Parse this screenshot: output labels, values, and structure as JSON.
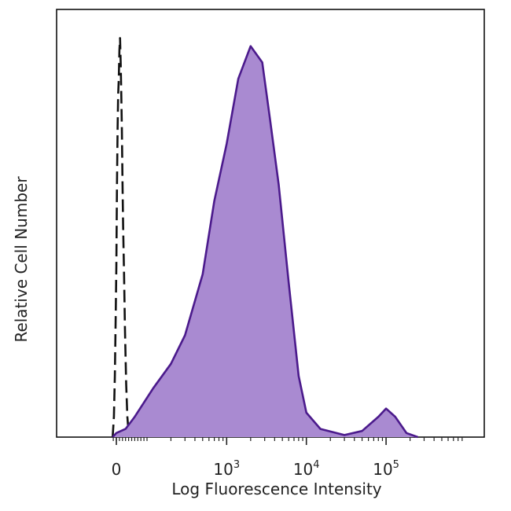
{
  "chart_data": {
    "type": "area",
    "xlabel": "Log Fluorescence Intensity",
    "ylabel": "Relative Cell Number",
    "x_scale": "biexponential",
    "xlim": [
      -20,
      400000
    ],
    "ylim": [
      0,
      100
    ],
    "x_ticks": [
      {
        "value": 0,
        "base": "0",
        "exp": ""
      },
      {
        "value": 1000,
        "base": "10",
        "exp": "3"
      },
      {
        "value": 10000,
        "base": "10",
        "exp": "4"
      },
      {
        "value": 100000,
        "base": "10",
        "exp": "5"
      }
    ],
    "series": [
      {
        "style": "dashed-outline",
        "color": "#111111",
        "x": [
          -12,
          -8,
          -5,
          -2,
          0,
          2,
          4,
          6,
          8,
          10,
          12,
          14,
          16,
          18,
          20,
          22,
          25,
          28,
          32,
          36,
          40,
          46
        ],
        "y": [
          0,
          5,
          15,
          30,
          42,
          62,
          76,
          84,
          88,
          95,
          98,
          92,
          85,
          76,
          63,
          52,
          40,
          27,
          13,
          5,
          1,
          0
        ]
      },
      {
        "style": "filled",
        "color": "#4B1A8C",
        "fill": "#A98AD1",
        "x": [
          -12,
          0,
          30,
          60,
          120,
          200,
          300,
          500,
          700,
          1000,
          1400,
          2000,
          2800,
          3500,
          4500,
          6000,
          8000,
          10000,
          15000,
          30000,
          50000,
          80000,
          100000,
          130000,
          180000,
          250000
        ],
        "y": [
          0,
          1,
          2,
          5,
          12,
          18,
          25,
          40,
          58,
          72,
          88,
          96,
          92,
          78,
          62,
          38,
          15,
          6,
          2,
          0.5,
          1.5,
          5,
          7,
          5,
          1,
          0
        ]
      }
    ]
  }
}
